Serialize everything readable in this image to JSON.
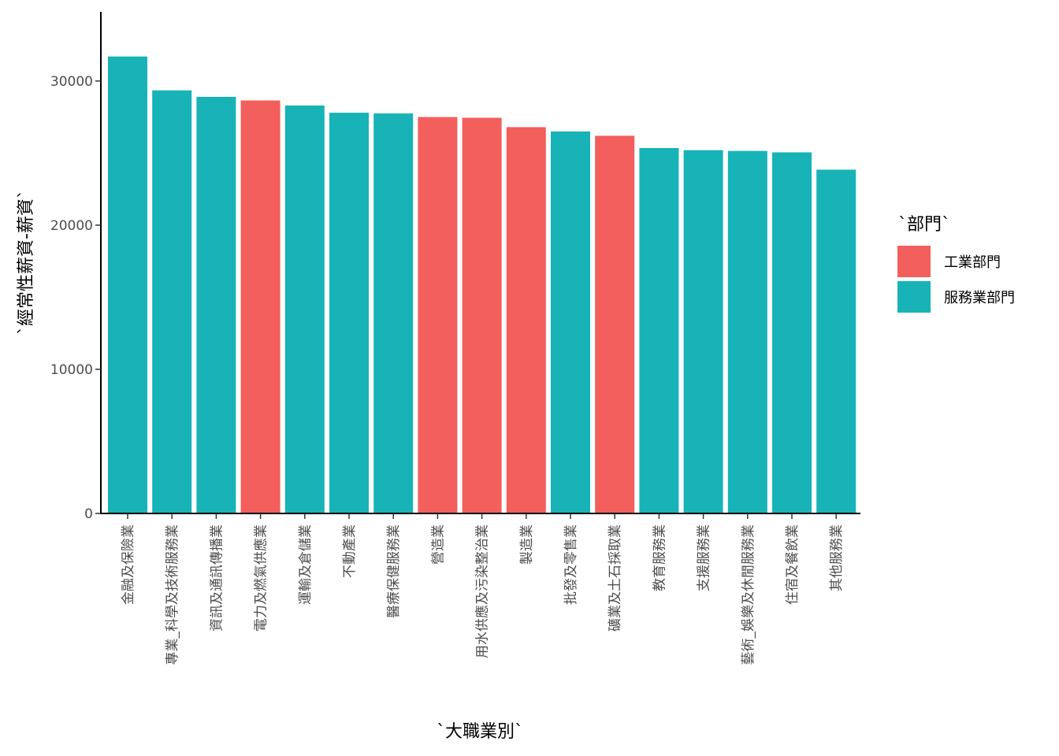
{
  "chart_data": {
    "type": "bar",
    "xlabel": "`大職業別`",
    "ylabel": "`經常性薪資-薪資`",
    "ylim": [
      0,
      34800
    ],
    "yticks": [
      0,
      10000,
      20000,
      30000
    ],
    "grid": false,
    "legend": {
      "title": "`部門`",
      "placement": "right",
      "entries": [
        {
          "name": "工業部門",
          "color": "#F25F5C"
        },
        {
          "name": "服務業部門",
          "color": "#17B3B7"
        }
      ]
    },
    "categories": [
      "金融及保險業",
      "專業_科學及技術服務業",
      "資訊及通訊傳播業",
      "電力及燃氣供應業",
      "運輸及倉儲業",
      "不動產業",
      "醫療保健服務業",
      "營造業",
      "用水供應及污染整治業",
      "製造業",
      "批發及零售業",
      "礦業及土石採取業",
      "教育服務業",
      "支援服務業",
      "藝術_娛樂及休閒服務業",
      "住宿及餐飲業",
      "其他服務業"
    ],
    "values": [
      31700,
      29350,
      28900,
      28650,
      28300,
      27800,
      27750,
      27500,
      27450,
      26800,
      26500,
      26200,
      25350,
      25200,
      25150,
      25050,
      23850
    ],
    "groups": [
      "服務業部門",
      "服務業部門",
      "服務業部門",
      "工業部門",
      "服務業部門",
      "服務業部門",
      "服務業部門",
      "工業部門",
      "工業部門",
      "工業部門",
      "服務業部門",
      "工業部門",
      "服務業部門",
      "服務業部門",
      "服務業部門",
      "服務業部門",
      "服務業部門"
    ]
  }
}
